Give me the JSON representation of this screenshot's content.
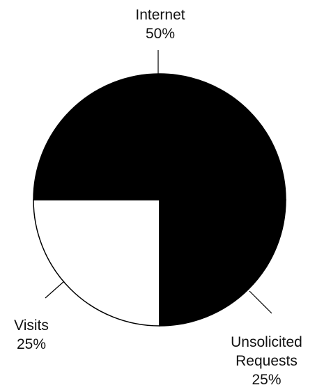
{
  "chart_data": {
    "type": "pie",
    "slices": [
      {
        "label": "Internet",
        "label_lines": [
          "Internet"
        ],
        "value": 50,
        "percent_label": "50%",
        "color": "#000000"
      },
      {
        "label": "Unsolicited Requests",
        "label_lines": [
          "Unsolicited",
          "Requests"
        ],
        "value": 25,
        "percent_label": "25%",
        "color": "#ffffff"
      },
      {
        "label": "Visits",
        "label_lines": [
          "Visits"
        ],
        "value": 25,
        "percent_label": "25%",
        "color": "#000000"
      }
    ],
    "slice_outline_color": "#000000"
  }
}
